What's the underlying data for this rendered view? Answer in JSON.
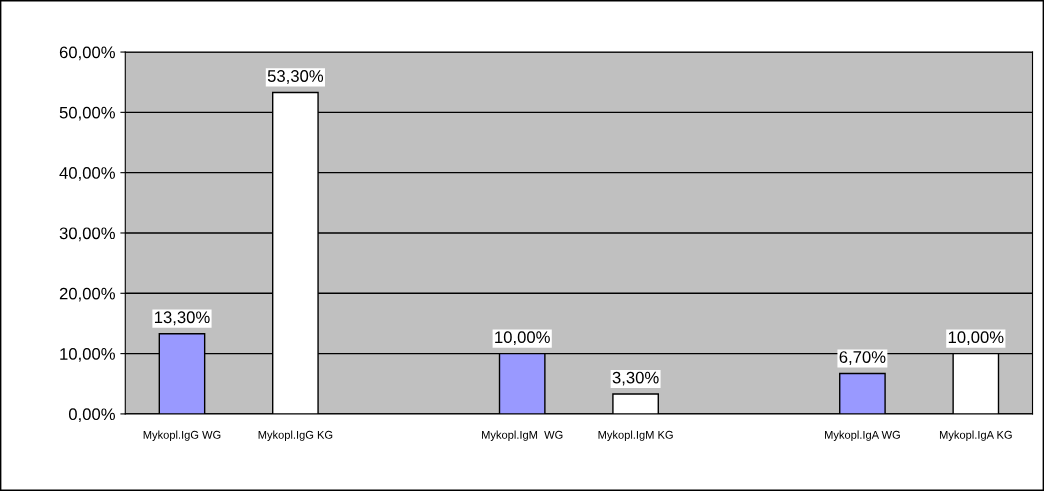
{
  "chart_data": {
    "type": "bar",
    "categories": [
      "Mykopl.IgG WG",
      "Mykopl.IgG KG",
      null,
      "Mykopl.IgM  WG",
      "Mykopl.IgM KG",
      null,
      "Mykopl.IgA WG",
      "Mykopl.IgA KG"
    ],
    "values": [
      13.3,
      53.3,
      null,
      10,
      3.3,
      null,
      6.7,
      10
    ],
    "colors": [
      "#9999ff",
      "#ffffff",
      null,
      "#9999ff",
      "#ffffff",
      null,
      "#9999ff",
      "#ffffff"
    ],
    "value_labels": [
      "13,30%",
      "53,30%",
      null,
      "10,00%",
      "3,30%",
      null,
      "6,70%",
      "10,00%"
    ],
    "ylim": [
      0,
      60
    ],
    "yticks": [
      {
        "value": 0,
        "label": "0,00%"
      },
      {
        "value": 10,
        "label": "10,00%"
      },
      {
        "value": 20,
        "label": "20,00%"
      },
      {
        "value": 30,
        "label": "30,00%"
      },
      {
        "value": 40,
        "label": "40,00%"
      },
      {
        "value": 50,
        "label": "50,00%"
      },
      {
        "value": 60,
        "label": "60,00%"
      }
    ],
    "grid": "y",
    "legend": false
  }
}
